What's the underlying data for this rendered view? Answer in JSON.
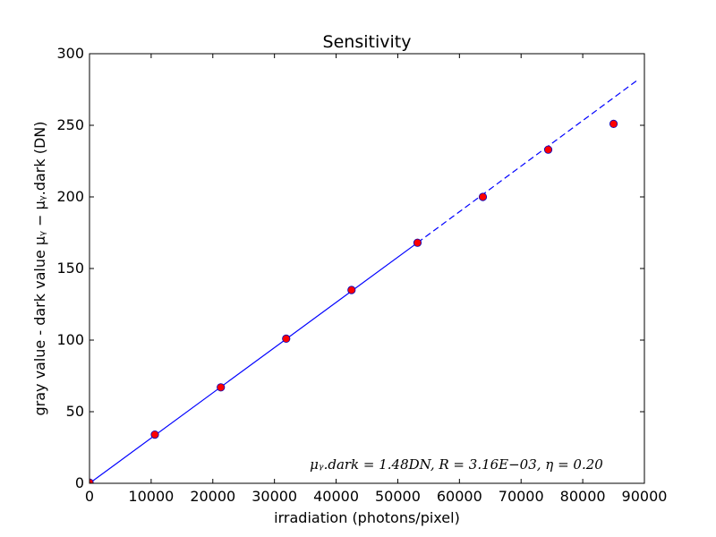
{
  "chart_data": {
    "type": "scatter",
    "title": "Sensitivity",
    "xlabel": "irradiation (photons/pixel)",
    "ylabel": "gray value - dark value μᵧ − μᵧ.dark (DN)",
    "xlim": [
      0,
      90000
    ],
    "ylim": [
      0,
      300
    ],
    "x_ticks": [
      0,
      10000,
      20000,
      30000,
      40000,
      50000,
      60000,
      70000,
      80000,
      90000
    ],
    "y_ticks": [
      0,
      50,
      100,
      150,
      200,
      250,
      300
    ],
    "grid": false,
    "series": [
      {
        "kind": "points",
        "color": "#ff0000",
        "edge_color": "#0000bf",
        "x": [
          0,
          10600,
          21300,
          31900,
          42500,
          53200,
          63800,
          74400,
          85000
        ],
        "y": [
          0.5,
          34,
          67,
          101,
          135,
          168,
          200,
          233,
          251
        ]
      },
      {
        "kind": "line",
        "style": "solid",
        "color": "#0000ff",
        "x": [
          0,
          53200
        ],
        "y": [
          0,
          168
        ]
      },
      {
        "kind": "line",
        "style": "dashed",
        "color": "#0000ff",
        "x": [
          53200,
          88700
        ],
        "y": [
          168,
          281
        ]
      }
    ],
    "annotation": "μᵧ.dark = 1.48DN, R = 3.16E−03, η = 0.20"
  }
}
